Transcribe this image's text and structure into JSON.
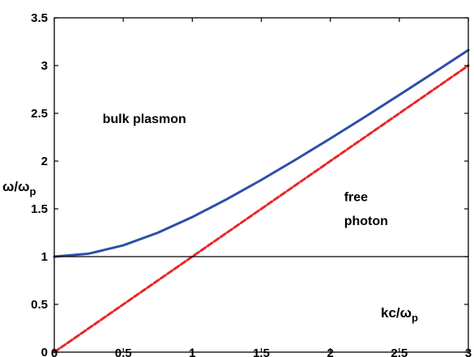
{
  "chart_data": {
    "type": "line",
    "xlabel": {
      "main": "kc/ω",
      "sub": "p"
    },
    "ylabel": {
      "main": "ω/ω",
      "sub": "p"
    },
    "xlim": [
      0,
      3
    ],
    "ylim": [
      0,
      3.5
    ],
    "xticks": [
      "0",
      "0.5",
      "1",
      "1.5",
      "2",
      "2.5",
      "3"
    ],
    "yticks": [
      "0",
      "0.5",
      "1",
      "1.5",
      "2",
      "2.5",
      "3",
      "3.5"
    ],
    "grid": false,
    "series": [
      {
        "color": "#2b4fa8",
        "style": "solid",
        "x": [
          0,
          0.25,
          0.5,
          0.75,
          1,
          1.25,
          1.5,
          1.75,
          2,
          2.25,
          2.5,
          2.75,
          3
        ],
        "y": [
          1,
          1.031,
          1.118,
          1.25,
          1.414,
          1.601,
          1.803,
          2.016,
          2.236,
          2.462,
          2.693,
          2.926,
          3.162
        ]
      },
      {
        "color": "#e8272a",
        "style": "dashed",
        "x": [
          0,
          3
        ],
        "y": [
          0,
          3
        ]
      },
      {
        "color": "#000000",
        "style": "solid",
        "x": [
          0,
          3
        ],
        "y": [
          1,
          1
        ]
      }
    ],
    "annotations": [
      {
        "text": "bulk   plasmon",
        "x": 0.35,
        "y": 2.4
      },
      {
        "text": "free",
        "x": 2.1,
        "y": 1.58
      },
      {
        "text": "photon",
        "x": 2.1,
        "y": 1.33
      }
    ]
  }
}
